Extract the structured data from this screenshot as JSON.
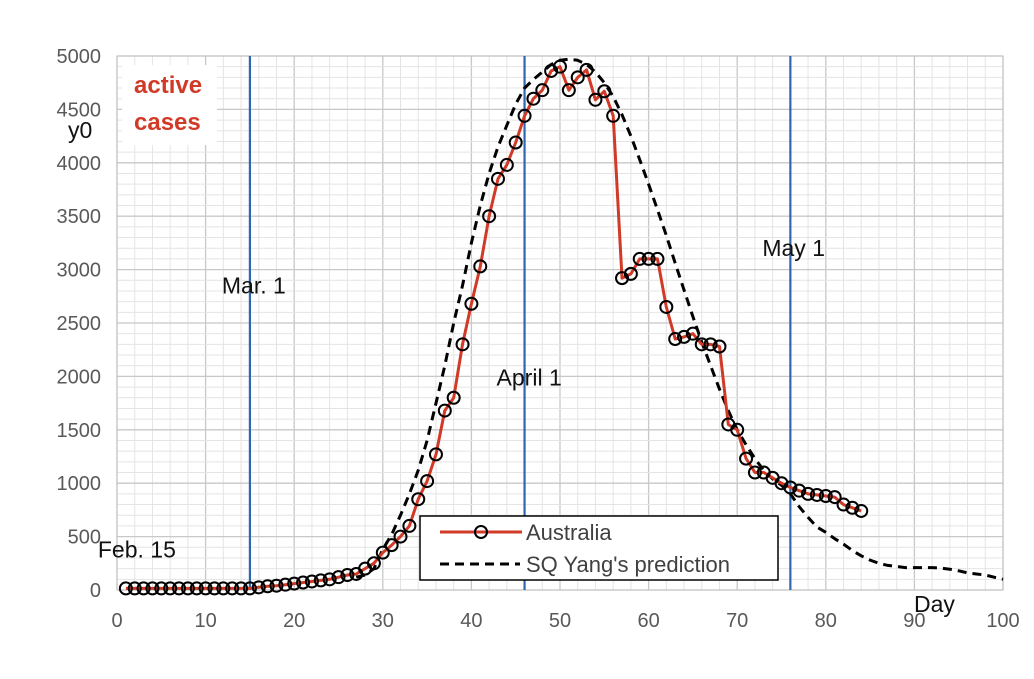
{
  "chart_data": {
    "type": "line",
    "title": "active\ncases",
    "title_color": "#d03a26",
    "xlabel": "Day",
    "ylabel": "y0",
    "xlim": [
      0,
      100
    ],
    "ylim": [
      0,
      5000
    ],
    "x_ticks": [
      0,
      10,
      20,
      30,
      40,
      50,
      60,
      70,
      80,
      90,
      100
    ],
    "y_ticks": [
      0,
      500,
      1000,
      1500,
      2000,
      2500,
      3000,
      3500,
      4000,
      4500,
      5000
    ],
    "grid": true,
    "legend_position": "bottom-center",
    "annotations": [
      {
        "text": "Feb. 15",
        "x": 1,
        "y": 380
      },
      {
        "text": "Mar. 1",
        "x": 15,
        "y": 2850
      },
      {
        "text": "April 1",
        "x": 46,
        "y": 1990
      },
      {
        "text": "May 1",
        "x": 76,
        "y": 3200
      }
    ],
    "vertical_lines": [
      {
        "x": 15,
        "color": "#2e67b1"
      },
      {
        "x": 46,
        "color": "#2e67b1"
      },
      {
        "x": 76,
        "color": "#2e67b1"
      }
    ],
    "series": [
      {
        "name": "Australia",
        "style": "line-markers",
        "color": "#d03a26",
        "marker_color": "#000000",
        "x": [
          1,
          2,
          3,
          4,
          5,
          6,
          7,
          8,
          9,
          10,
          11,
          12,
          13,
          14,
          15,
          16,
          17,
          18,
          19,
          20,
          21,
          22,
          23,
          24,
          25,
          26,
          27,
          28,
          29,
          30,
          31,
          32,
          33,
          34,
          35,
          36,
          37,
          38,
          39,
          40,
          41,
          42,
          43,
          44,
          45,
          46,
          47,
          48,
          49,
          50,
          51,
          52,
          53,
          54,
          55,
          56,
          57,
          58,
          59,
          60,
          61,
          62,
          63,
          64,
          65,
          66,
          67,
          68,
          69,
          70,
          71,
          72,
          73,
          74,
          75,
          76,
          77,
          78,
          79,
          80,
          81,
          82,
          83,
          84
        ],
        "y": [
          15,
          15,
          15,
          15,
          15,
          15,
          15,
          15,
          15,
          15,
          15,
          15,
          15,
          15,
          15,
          25,
          35,
          40,
          50,
          60,
          70,
          80,
          90,
          100,
          120,
          140,
          150,
          200,
          250,
          350,
          420,
          500,
          600,
          850,
          1020,
          1270,
          1680,
          1800,
          2300,
          2680,
          3030,
          3500,
          3850,
          3980,
          4190,
          4440,
          4600,
          4680,
          4860,
          4900,
          4680,
          4800,
          4870,
          4590,
          4670,
          4440,
          2920,
          2960,
          3100,
          3100,
          3100,
          2650,
          2350,
          2370,
          2400,
          2300,
          2300,
          2280,
          1550,
          1500,
          1230,
          1100,
          1100,
          1050,
          1000,
          960,
          930,
          900,
          890,
          880,
          870,
          800,
          770,
          740
        ]
      },
      {
        "name": "SQ Yang's prediction",
        "style": "dashed",
        "color": "#000000",
        "x": [
          27,
          28,
          29,
          30,
          31,
          32,
          33,
          34,
          35,
          36,
          37,
          38,
          39,
          40,
          41,
          42,
          43,
          44,
          45,
          46,
          47,
          48,
          49,
          50,
          51,
          52,
          53,
          54,
          55,
          56,
          57,
          58,
          59,
          60,
          61,
          62,
          63,
          64,
          65,
          66,
          67,
          68,
          69,
          70,
          71,
          72,
          73,
          74,
          75,
          76,
          77,
          78,
          79,
          80,
          81,
          82,
          83,
          84,
          85,
          86,
          87,
          88,
          89,
          90,
          91,
          92,
          93,
          94,
          95,
          96,
          97,
          98,
          99,
          100
        ],
        "y": [
          120,
          140,
          200,
          380,
          520,
          700,
          900,
          1120,
          1400,
          1750,
          2100,
          2500,
          2850,
          3250,
          3600,
          3900,
          4150,
          4350,
          4550,
          4700,
          4780,
          4850,
          4920,
          4960,
          4970,
          4960,
          4920,
          4850,
          4750,
          4620,
          4450,
          4250,
          4030,
          3800,
          3560,
          3320,
          3060,
          2810,
          2560,
          2320,
          2100,
          1880,
          1680,
          1500,
          1360,
          1230,
          1120,
          1040,
          980,
          900,
          780,
          680,
          590,
          540,
          480,
          430,
          370,
          320,
          280,
          250,
          230,
          220,
          210,
          210,
          210,
          210,
          205,
          195,
          180,
          160,
          150,
          140,
          120,
          100
        ]
      }
    ]
  }
}
